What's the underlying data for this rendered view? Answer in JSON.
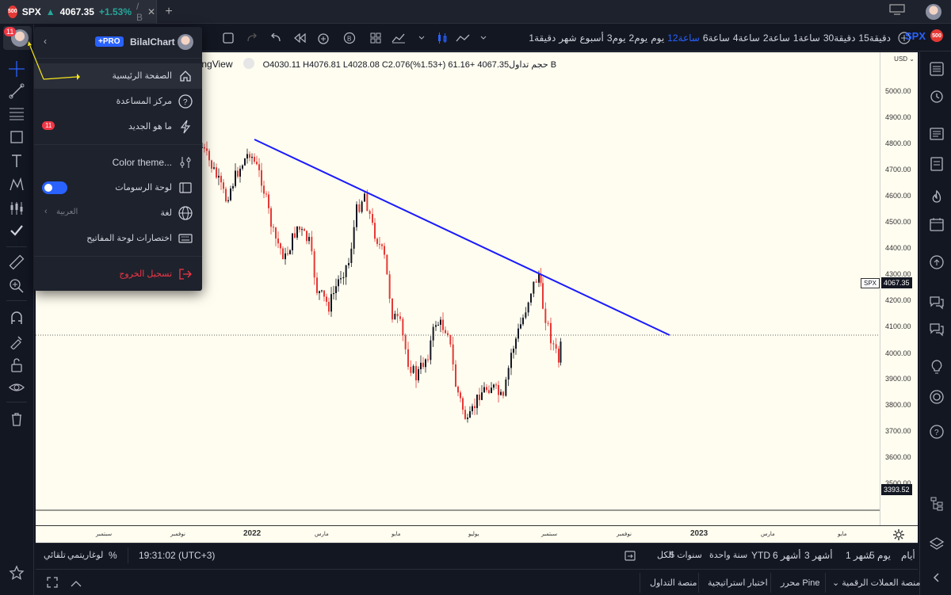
{
  "tab": {
    "badge": "500",
    "symbol": "SPX",
    "arrow": "▲",
    "price": "4067.35",
    "change": "+1.53%",
    "suffix": "/ B",
    "close": "✕",
    "new_tab": "+"
  },
  "toolbar": {
    "symbol": "SPX",
    "symbol_badge": "500",
    "timeframes": [
      "15دقيقة",
      "30دقيقة",
      "1ساعة",
      "2ساعة",
      "4ساعة",
      "6ساعة",
      "12ساعة",
      "يوم",
      "2يوم",
      "3يوم",
      "أسبوع",
      "شهر",
      "1دقيقة"
    ],
    "active_timeframe": "12ساعة"
  },
  "left_tools": {
    "avatar_badge": "11"
  },
  "menu": {
    "pro_label": "+PRO",
    "username": "BilalChart",
    "items": [
      {
        "label": "الصفحة الرئيسية",
        "icon": "home-icon"
      },
      {
        "label": "مركز المساعدة",
        "icon": "help-icon"
      },
      {
        "label": "ما هو الجديد",
        "icon": "lightning-icon",
        "badge": "11"
      },
      {
        "label": "Color theme...",
        "icon": "sliders-icon"
      },
      {
        "label": "لوحة الرسومات",
        "icon": "drawing-panel-icon"
      },
      {
        "label": "لغة",
        "icon": "globe-icon",
        "value": "العربية"
      },
      {
        "label": "اختصارات لوحة المفاتيح",
        "icon": "keyboard-icon"
      },
      {
        "label": "تسجيل الخروج",
        "icon": "logout-icon"
      }
    ]
  },
  "legend": {
    "name_fragment": "dingView",
    "ohlc": "O4030.11  H4076.81  L4028.08  C2.076حجم تداول4067.35  +61.16 (+1.53%)  B"
  },
  "price_axis": {
    "currency": "USD",
    "ticks": [
      "5000.00",
      "4900.00",
      "4800.00",
      "4700.00",
      "4600.00",
      "4500.00",
      "4400.00",
      "4300.00",
      "4200.00",
      "4100.00",
      "4000.00",
      "3900.00",
      "3800.00",
      "3700.00",
      "3600.00",
      "3500.00"
    ],
    "current_price": "4067.35",
    "current_symbol": "SPX",
    "bottom_value": "3393.52"
  },
  "time_axis": {
    "labels": [
      "سبتمبر",
      "نوفمبر",
      "2022",
      "مارس",
      "مايو",
      "يوليو",
      "سبتمبر",
      "نوفمبر",
      "2023",
      "مارس",
      "مايو"
    ]
  },
  "range_bar": {
    "ranges": [
      "يوم 5",
      "أيام",
      "شهر 1",
      "3 أشهر",
      "6 أشهر",
      "YTD",
      "سنة واحدة",
      "5 سنوات",
      "الكل"
    ],
    "time": "19:31:02 (UTC+3)",
    "percent": "%",
    "log": "لوغاريتمي",
    "auto": "تلقائي"
  },
  "bottom_bar": {
    "tabs": [
      "منصة العملات الرقمية",
      "محرر Pine",
      "اختبار استراتيجية",
      "منصة التداول"
    ]
  },
  "colors": {
    "accent": "#2962ff",
    "up": "#26a69a",
    "candle_up": "#131722",
    "candle_down": "#e53935",
    "trendline": "#1a1aff",
    "chart_bg": "#fffdf0"
  }
}
